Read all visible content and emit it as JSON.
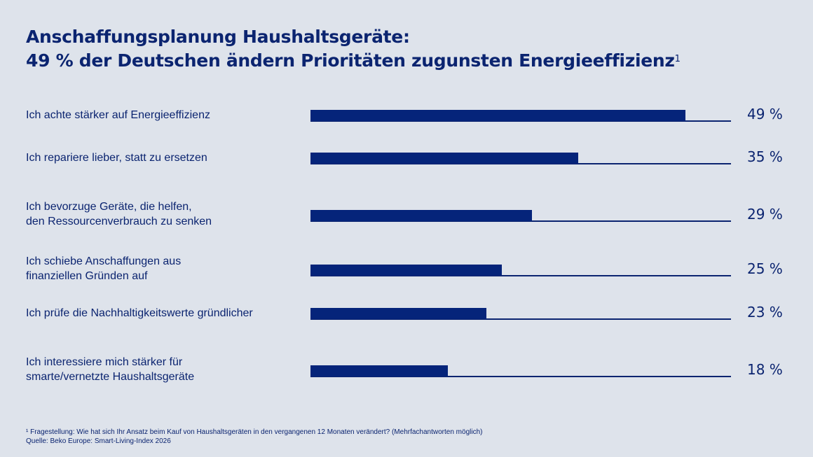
{
  "title": {
    "line1": "Anschaffungsplanung Haushaltsgeräte:",
    "line2": "49 % der Deutschen ändern Prioritäten zugunsten Energieeffizienz",
    "footnote_marker": "1"
  },
  "chart_data": {
    "type": "bar",
    "orientation": "horizontal",
    "categories": [
      [
        "Ich achte stärker auf Energieeffizienz"
      ],
      [
        "Ich repariere lieber, statt zu ersetzen"
      ],
      [
        "Ich bevorzuge Geräte, die helfen,",
        "den Ressourcenverbrauch zu senken"
      ],
      [
        "Ich schiebe Anschaffungen aus",
        "finanziellen Gründen auf"
      ],
      [
        "Ich prüfe die Nachhaltigkeitswerte gründlicher"
      ],
      [
        "Ich interessiere mich stärker für",
        "smarte/vernetzte Haushaltsgeräte"
      ]
    ],
    "values": [
      49,
      35,
      29,
      25,
      23,
      18
    ],
    "value_labels": [
      "49 %",
      "35 %",
      "29 %",
      "25 %",
      "23 %",
      "18 %"
    ],
    "xlim": [
      0,
      55
    ],
    "unit": "%",
    "grid": false,
    "bar_color": "#05247a"
  },
  "footnote": {
    "question": "¹ Fragestellung: Wie hat sich Ihr Ansatz beim Kauf von Haushaltsgeräten in den vergangenen 12 Monaten verändert? (Mehrfachantworten möglich)",
    "source": "Quelle: Beko Europe: Smart-Living-Index 2026"
  }
}
